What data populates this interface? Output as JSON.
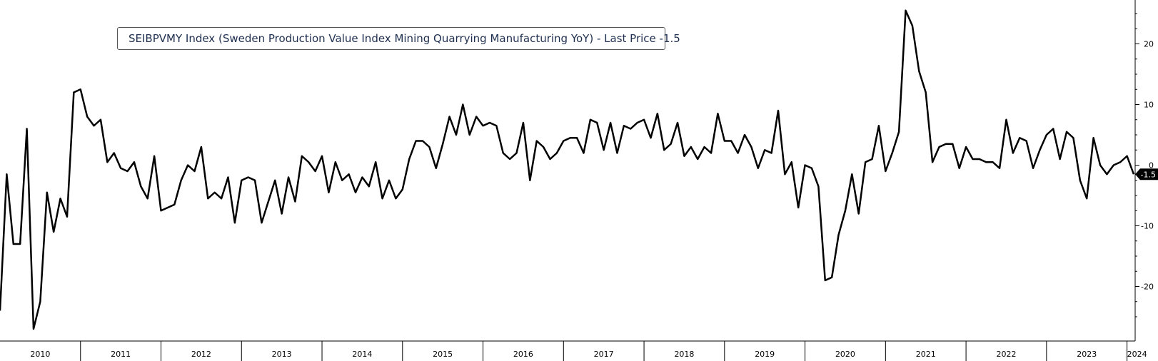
{
  "chart_data": {
    "type": "line",
    "legend": {
      "ticker": "SEIBPVMY Index",
      "description": "Sweden Production Value Index Mining Quarrying Manufacturing YoY",
      "last_price_label": "Last Price",
      "last_value": "-1.5"
    },
    "x_labels": [
      "2010",
      "2011",
      "2012",
      "2013",
      "2014",
      "2015",
      "2016",
      "2017",
      "2018",
      "2019",
      "2020",
      "2021",
      "2022",
      "2023",
      "2024"
    ],
    "y_ticks": [
      20,
      10,
      0,
      -10,
      -20
    ],
    "ylim": [
      -29,
      27
    ],
    "grid": false,
    "legend_position": "top-left",
    "series": [
      {
        "name": "SEIBPVMY Index (Sweden Production Value Index Mining Quarrying Manufacturing YoY)",
        "color": "#000000",
        "start": "2010-01",
        "frequency": "monthly",
        "values": [
          -24,
          -1.5,
          -13,
          -13,
          6,
          -27,
          -22.5,
          -4.5,
          -11,
          -5.5,
          -8.5,
          12,
          12.5,
          8,
          6.5,
          7.5,
          0.5,
          2,
          -0.5,
          -1,
          0.5,
          -3.5,
          -5.5,
          1.5,
          -7.5,
          -7,
          -6.5,
          -2.5,
          0,
          -1,
          3,
          -5.5,
          -4.5,
          -5.5,
          -2,
          -9.5,
          -2.5,
          -2,
          -2.5,
          -9.5,
          -6,
          -2.5,
          -8,
          -2,
          -6,
          1.5,
          0.5,
          -1,
          1.5,
          -4.5,
          0.5,
          -2.5,
          -1.5,
          -4.5,
          -2,
          -3.5,
          0.5,
          -5.5,
          -2.5,
          -5.5,
          -4,
          1,
          4,
          4,
          3,
          -0.5,
          3.5,
          8,
          5,
          10,
          5,
          8,
          6.5,
          7,
          6.5,
          2,
          1,
          2,
          7,
          -2.5,
          4,
          3,
          1,
          2,
          4,
          4.5,
          4.5,
          2,
          7.5,
          7,
          2.5,
          7,
          2,
          6.5,
          6,
          7,
          7.5,
          4.5,
          8.5,
          2.5,
          3.5,
          7,
          1.5,
          3,
          1,
          3,
          2,
          8.5,
          4,
          4,
          2,
          5,
          3,
          -0.5,
          2.5,
          2,
          9,
          -1.5,
          0.5,
          -7,
          0,
          -0.5,
          -3.5,
          -19,
          -18.5,
          -11.5,
          -7.5,
          -1.5,
          -8,
          0.5,
          1,
          6.5,
          -1,
          2,
          5.5,
          25.5,
          23,
          15.5,
          12,
          0.5,
          3,
          3.5,
          3.5,
          -0.5,
          3,
          1,
          1,
          0.5,
          0.5,
          -0.5,
          7.5,
          2,
          4.5,
          4,
          -0.5,
          2.5,
          5,
          6,
          1,
          5.5,
          4.5,
          -2.5,
          -5.5,
          4.5,
          0,
          -1.5,
          0,
          0.5,
          1.5,
          -1.5
        ]
      }
    ]
  }
}
